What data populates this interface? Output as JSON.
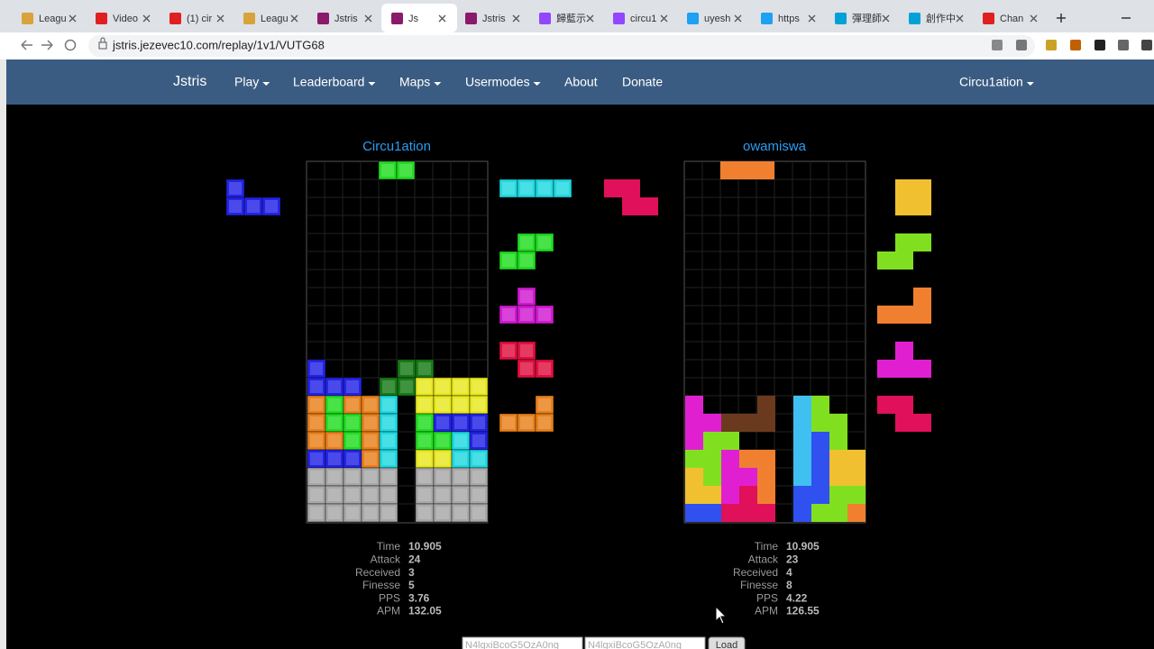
{
  "browser": {
    "tabs": [
      "Leagu",
      "Video",
      "(1) cir",
      "Leagu",
      "Jstris",
      "Js",
      "Jstris",
      "歸藍示",
      "circu1",
      "uyesh",
      "https",
      "彈理師",
      "創作中",
      "Chan"
    ],
    "url": "jstris.jezevec10.com/replay/1v1/VUTG68"
  },
  "nav": {
    "brand": "Jstris",
    "items": [
      "Play",
      "Leaderboard",
      "Maps",
      "Usermodes",
      "About",
      "Donate"
    ],
    "user": "Circu1ation"
  },
  "players": [
    {
      "name": "Circu1ation",
      "stats": [
        {
          "label": "Time",
          "value": 10.905
        },
        {
          "label": "Attack",
          "value": 24
        },
        {
          "label": "Received",
          "value": 3
        },
        {
          "label": "Finesse",
          "value": 5
        },
        {
          "label": "PPS",
          "value": 3.76
        },
        {
          "label": "APM",
          "value": 132.05
        }
      ]
    },
    {
      "name": "owamiswa",
      "stats": [
        {
          "label": "Time",
          "value": 10.905
        },
        {
          "label": "Attack",
          "value": 23
        },
        {
          "label": "Received",
          "value": 4
        },
        {
          "label": "Finesse",
          "value": 8
        },
        {
          "label": "PPS",
          "value": 4.22
        },
        {
          "label": "APM",
          "value": 126.55
        }
      ]
    }
  ],
  "replay": {
    "inputs": [
      "N4lgxiBcoG5OzA0ng",
      "N4lgxiBcoG5OzA0ng"
    ],
    "button": "Load"
  }
}
